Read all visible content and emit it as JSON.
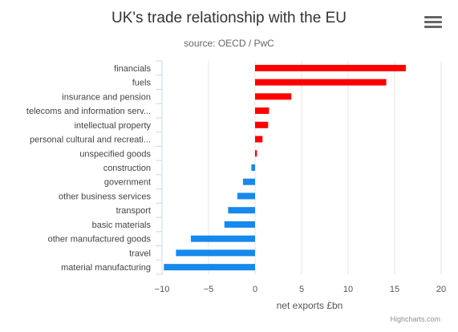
{
  "chart_data": {
    "type": "bar",
    "orientation": "horizontal",
    "title": "UK's trade relationship with the EU",
    "subtitle": "source: OECD / PwC",
    "xlabel": "net exports £bn",
    "ylabel": "",
    "categories": [
      "financials",
      "fuels",
      "insurance and pension",
      "telecoms and information serv...",
      "intellectual property",
      "personal cultural and recreati...",
      "unspecified goods",
      "construction",
      "government",
      "other business services",
      "transport",
      "basic materials",
      "other manufactured goods",
      "travel",
      "material manufacturing"
    ],
    "values": [
      16.2,
      14.1,
      3.9,
      1.5,
      1.4,
      0.8,
      0.2,
      -0.4,
      -1.3,
      -1.9,
      -2.9,
      -3.3,
      -6.9,
      -8.5,
      -9.8
    ],
    "xlim": [
      -10,
      20
    ],
    "xticks": [
      -10,
      -5,
      0,
      5,
      10,
      15,
      20
    ],
    "xtick_labels": [
      "−10",
      "−5",
      "0",
      "5",
      "10",
      "15",
      "20"
    ],
    "grid": true,
    "legend": "none",
    "colors": {
      "positive": "#ff0000",
      "negative": "#1589ee"
    }
  },
  "menu_icon": "hamburger-menu-icon",
  "credits": "Highcharts.com"
}
